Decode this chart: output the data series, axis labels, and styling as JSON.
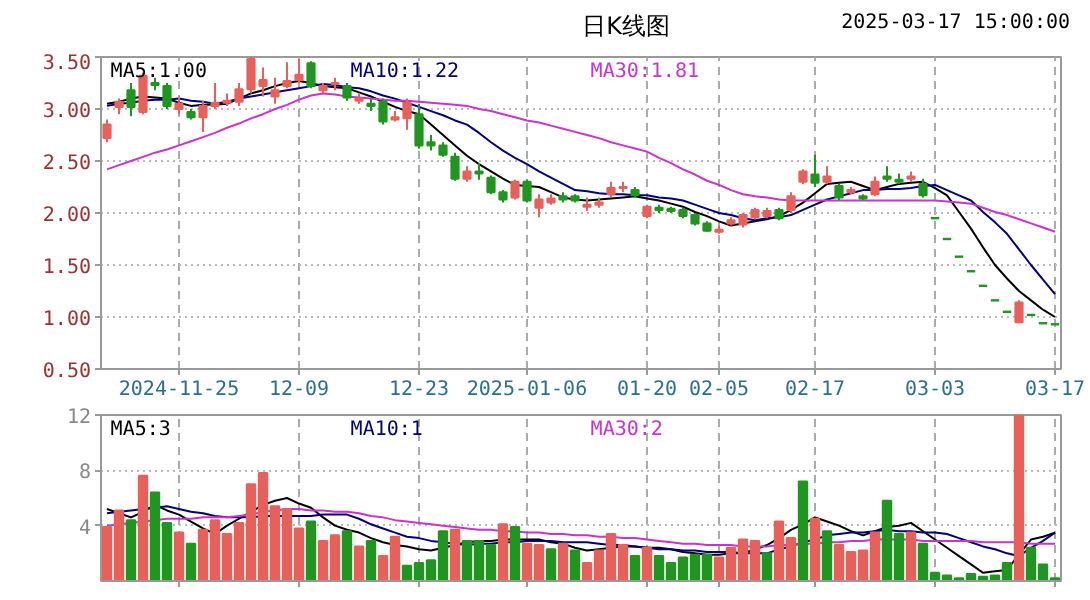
{
  "chart_data": [
    {
      "type": "candlestick",
      "title": "日K线图",
      "annotations": [
        "2025-03-17 15:00:00"
      ],
      "categories": [
        null,
        null,
        null,
        null,
        null,
        null,
        "2024-11-25",
        null,
        null,
        null,
        null,
        null,
        null,
        null,
        null,
        null,
        "12-09",
        null,
        null,
        null,
        null,
        null,
        null,
        null,
        null,
        null,
        "12-23",
        null,
        null,
        null,
        null,
        null,
        null,
        null,
        null,
        "2025-01-06",
        null,
        null,
        null,
        null,
        null,
        null,
        null,
        null,
        null,
        "01-20",
        null,
        null,
        null,
        null,
        null,
        "02-05",
        null,
        null,
        null,
        null,
        null,
        null,
        null,
        "02-17",
        null,
        null,
        null,
        null,
        null,
        null,
        null,
        null,
        null,
        "03-03",
        null,
        null,
        null,
        null,
        null,
        null,
        null,
        null,
        null,
        "03-17"
      ],
      "ohlc": [
        [
          2.72,
          2.9,
          2.68,
          2.85
        ],
        [
          3.02,
          3.1,
          2.95,
          3.07
        ],
        [
          3.18,
          3.25,
          2.93,
          3.02
        ],
        [
          2.97,
          3.35,
          2.95,
          3.32
        ],
        [
          3.25,
          3.3,
          3.18,
          3.23
        ],
        [
          3.22,
          3.25,
          3.0,
          3.03
        ],
        [
          3.0,
          3.12,
          2.95,
          3.05
        ],
        [
          2.97,
          3.0,
          2.9,
          2.92
        ],
        [
          2.92,
          3.08,
          2.78,
          3.03
        ],
        [
          3.03,
          3.25,
          3.0,
          3.06
        ],
        [
          3.06,
          3.15,
          3.03,
          3.08
        ],
        [
          3.07,
          3.25,
          3.03,
          3.19
        ],
        [
          3.19,
          3.5,
          3.15,
          3.48
        ],
        [
          3.22,
          3.4,
          3.12,
          3.28
        ],
        [
          3.12,
          3.3,
          3.05,
          3.18
        ],
        [
          3.22,
          3.45,
          3.2,
          3.27
        ],
        [
          3.28,
          3.48,
          3.25,
          3.33
        ],
        [
          3.44,
          3.46,
          3.2,
          3.22
        ],
        [
          3.18,
          3.25,
          3.15,
          3.22
        ],
        [
          3.24,
          3.3,
          3.18,
          3.25
        ],
        [
          3.22,
          3.25,
          3.08,
          3.11
        ],
        [
          3.08,
          3.15,
          3.05,
          3.1
        ],
        [
          3.05,
          3.1,
          2.98,
          3.03
        ],
        [
          3.07,
          3.1,
          2.85,
          2.88
        ],
        [
          2.9,
          2.98,
          2.88,
          2.92
        ],
        [
          2.91,
          3.1,
          2.8,
          3.06
        ],
        [
          2.95,
          3.05,
          2.62,
          2.65
        ],
        [
          2.68,
          2.75,
          2.6,
          2.65
        ],
        [
          2.65,
          2.68,
          2.54,
          2.56
        ],
        [
          2.54,
          2.58,
          2.31,
          2.33
        ],
        [
          2.33,
          2.45,
          2.3,
          2.4
        ],
        [
          2.4,
          2.48,
          2.32,
          2.38
        ],
        [
          2.34,
          2.36,
          2.18,
          2.2
        ],
        [
          2.2,
          2.22,
          2.1,
          2.13
        ],
        [
          2.15,
          2.32,
          2.13,
          2.3
        ],
        [
          2.3,
          2.32,
          2.1,
          2.12
        ],
        [
          2.05,
          2.18,
          1.96,
          2.13
        ],
        [
          2.1,
          2.18,
          2.08,
          2.14
        ],
        [
          2.16,
          2.2,
          2.1,
          2.13
        ],
        [
          2.16,
          2.18,
          2.1,
          2.12
        ],
        [
          2.06,
          2.15,
          2.02,
          2.08
        ],
        [
          2.08,
          2.15,
          2.05,
          2.1
        ],
        [
          2.18,
          2.3,
          2.15,
          2.24
        ],
        [
          2.24,
          2.3,
          2.2,
          2.25
        ],
        [
          2.22,
          2.25,
          2.15,
          2.17
        ],
        [
          1.97,
          2.08,
          1.95,
          2.06
        ],
        [
          2.05,
          2.08,
          2.0,
          2.03
        ],
        [
          2.04,
          2.06,
          2.0,
          2.02
        ],
        [
          2.03,
          2.05,
          1.95,
          1.97
        ],
        [
          1.98,
          2.0,
          1.88,
          1.9
        ],
        [
          1.9,
          1.92,
          1.82,
          1.83
        ],
        [
          1.82,
          1.88,
          1.8,
          1.84
        ],
        [
          1.9,
          1.96,
          1.88,
          1.93
        ],
        [
          1.89,
          2.0,
          1.86,
          1.98
        ],
        [
          1.96,
          2.05,
          1.94,
          2.03
        ],
        [
          1.97,
          2.05,
          1.95,
          2.02
        ],
        [
          2.03,
          2.05,
          1.93,
          1.95
        ],
        [
          2.03,
          2.2,
          2.0,
          2.16
        ],
        [
          2.3,
          2.42,
          2.28,
          2.4
        ],
        [
          2.37,
          2.56,
          2.25,
          2.29
        ],
        [
          2.3,
          2.45,
          2.28,
          2.35
        ],
        [
          2.26,
          2.28,
          2.12,
          2.15
        ],
        [
          2.2,
          2.25,
          2.18,
          2.22
        ],
        [
          2.16,
          2.18,
          2.12,
          2.14
        ],
        [
          2.18,
          2.35,
          2.16,
          2.3
        ],
        [
          2.35,
          2.45,
          2.3,
          2.33
        ],
        [
          2.32,
          2.38,
          2.28,
          2.3
        ],
        [
          2.33,
          2.4,
          2.3,
          2.35
        ],
        [
          2.28,
          2.33,
          2.15,
          2.17
        ],
        [
          1.95,
          1.95,
          1.95,
          1.95
        ],
        [
          1.75,
          1.75,
          1.75,
          1.75
        ],
        [
          1.58,
          1.58,
          1.58,
          1.58
        ],
        [
          1.44,
          1.44,
          1.44,
          1.44
        ],
        [
          1.3,
          1.3,
          1.3,
          1.3
        ],
        [
          1.16,
          1.16,
          1.16,
          1.16
        ],
        [
          1.05,
          1.05,
          1.05,
          1.05
        ],
        [
          0.95,
          1.16,
          0.94,
          1.14
        ],
        [
          1.02,
          1.02,
          1.02,
          1.02
        ],
        [
          0.94,
          0.94,
          0.94,
          0.94
        ],
        [
          0.93,
          0.93,
          0.93,
          0.93
        ]
      ],
      "series": [
        {
          "type": "line",
          "name": "MA5:1.00",
          "color": "#000000",
          "values": [
            3.05,
            3.07,
            3.1,
            3.12,
            3.11,
            3.1,
            3.06,
            3.03,
            3.04,
            3.04,
            3.05,
            3.1,
            3.15,
            3.18,
            3.22,
            3.25,
            3.27,
            3.25,
            3.22,
            3.21,
            3.2,
            3.16,
            3.12,
            3.07,
            3.02,
            2.98,
            2.95,
            2.85,
            2.75,
            2.65,
            2.55,
            2.47,
            2.4,
            2.33,
            2.27,
            2.26,
            2.25,
            2.2,
            2.15,
            2.13,
            2.12,
            2.13,
            2.14,
            2.15,
            2.16,
            2.14,
            2.12,
            2.09,
            2.06,
            2.01,
            1.97,
            1.92,
            1.88,
            1.9,
            1.92,
            1.94,
            1.97,
            2.03,
            2.1,
            2.19,
            2.28,
            2.29,
            2.3,
            2.26,
            2.22,
            2.25,
            2.28,
            2.29,
            2.3,
            2.24,
            2.17,
            2.01,
            1.85,
            1.67,
            1.5,
            1.37,
            1.25,
            1.16,
            1.07,
            1.0
          ]
        },
        {
          "type": "line",
          "name": "MA10:1.22",
          "color": "#000080",
          "values": [
            3.03,
            3.05,
            3.06,
            3.08,
            3.09,
            3.09,
            3.1,
            3.08,
            3.07,
            3.05,
            3.07,
            3.1,
            3.12,
            3.14,
            3.16,
            3.18,
            3.2,
            3.22,
            3.24,
            3.23,
            3.21,
            3.2,
            3.17,
            3.13,
            3.1,
            3.06,
            3.02,
            2.98,
            2.94,
            2.89,
            2.85,
            2.77,
            2.68,
            2.6,
            2.53,
            2.47,
            2.4,
            2.34,
            2.28,
            2.22,
            2.21,
            2.19,
            2.18,
            2.18,
            2.17,
            2.17,
            2.15,
            2.14,
            2.12,
            2.08,
            2.04,
            2.0,
            1.98,
            1.95,
            1.93,
            1.95,
            1.96,
            1.98,
            2.03,
            2.08,
            2.13,
            2.16,
            2.19,
            2.22,
            2.22,
            2.23,
            2.23,
            2.24,
            2.26,
            2.27,
            2.22,
            2.17,
            2.12,
            2.01,
            1.91,
            1.8,
            1.65,
            1.5,
            1.36,
            1.22
          ]
        },
        {
          "type": "line",
          "name": "MA30:1.81",
          "color": "#cc33cc",
          "values": [
            2.42,
            2.46,
            2.5,
            2.54,
            2.58,
            2.61,
            2.65,
            2.69,
            2.73,
            2.77,
            2.82,
            2.86,
            2.91,
            2.95,
            3.0,
            3.04,
            3.09,
            3.13,
            3.15,
            3.14,
            3.12,
            3.11,
            3.1,
            3.09,
            3.08,
            3.08,
            3.07,
            3.06,
            3.05,
            3.04,
            3.03,
            3.0,
            2.98,
            2.95,
            2.92,
            2.89,
            2.87,
            2.84,
            2.81,
            2.78,
            2.75,
            2.72,
            2.68,
            2.65,
            2.62,
            2.59,
            2.53,
            2.48,
            2.42,
            2.37,
            2.31,
            2.27,
            2.22,
            2.18,
            2.16,
            2.15,
            2.13,
            2.12,
            2.12,
            2.12,
            2.12,
            2.12,
            2.12,
            2.12,
            2.12,
            2.12,
            2.12,
            2.12,
            2.12,
            2.12,
            2.11,
            2.1,
            2.09,
            2.05,
            2.01,
            1.98,
            1.94,
            1.9,
            1.86,
            1.82
          ]
        }
      ],
      "ylim": [
        0.5,
        3.5
      ],
      "yticks": [
        {
          "value": 0.5,
          "label": "0.50"
        },
        {
          "value": 1.0,
          "label": "1.00"
        },
        {
          "value": 1.5,
          "label": "1.50"
        },
        {
          "value": 2.0,
          "label": "2.00"
        },
        {
          "value": 2.5,
          "label": "2.50"
        },
        {
          "value": 3.0,
          "label": "3.00"
        },
        {
          "value": 3.5,
          "label": "3.50"
        }
      ],
      "grid": true,
      "legend": "top"
    },
    {
      "type": "bar",
      "categories": [
        null,
        null,
        null,
        null,
        null,
        null,
        null,
        null,
        null,
        null,
        null,
        null,
        null,
        null,
        null,
        null,
        null,
        null,
        null,
        null,
        null,
        null,
        null,
        null,
        null,
        null,
        null,
        null,
        null,
        null,
        null,
        null,
        null,
        null,
        null,
        null,
        null,
        null,
        null,
        null,
        null,
        null,
        null,
        null,
        null,
        null,
        null,
        null,
        null,
        null,
        null,
        null,
        null,
        null,
        null,
        null,
        null,
        null,
        null,
        null,
        null,
        null,
        null,
        null,
        null,
        null,
        null,
        null,
        null,
        null,
        null,
        null,
        null,
        null,
        null,
        null,
        null,
        null,
        null,
        null
      ],
      "values": [
        3.9,
        5.1,
        4.4,
        7.6,
        6.4,
        4.2,
        3.5,
        2.7,
        3.7,
        4.4,
        3.4,
        4.2,
        7.0,
        7.8,
        5.4,
        5.2,
        3.8,
        4.3,
        2.9,
        3.3,
        3.6,
        2.5,
        2.9,
        1.8,
        3.2,
        1.1,
        1.3,
        1.5,
        3.6,
        3.7,
        2.9,
        2.9,
        2.6,
        4.1,
        3.9,
        2.7,
        2.6,
        2.3,
        2.7,
        2.2,
        1.3,
        2.2,
        3.4,
        2.6,
        1.8,
        2.4,
        1.8,
        1.3,
        1.7,
        1.9,
        1.9,
        1.7,
        2.4,
        3.0,
        2.9,
        2.0,
        4.3,
        3.1,
        7.2,
        4.5,
        3.6,
        2.6,
        2.1,
        2.2,
        3.5,
        5.8,
        3.4,
        3.5,
        2.7,
        0.6,
        0.4,
        0.2,
        0.5,
        0.3,
        0.4,
        1.3,
        12,
        2.4,
        1.2,
        0.2
      ],
      "colors": [
        "#e8605a",
        "#e8605a",
        "#1f961f",
        "#e8605a",
        "#1f961f",
        "#1f961f",
        "#e8605a",
        "#1f961f",
        "#e8605a",
        "#e8605a",
        "#e8605a",
        "#e8605a",
        "#e8605a",
        "#e8605a",
        "#e8605a",
        "#e8605a",
        "#e8605a",
        "#1f961f",
        "#e8605a",
        "#e8605a",
        "#1f961f",
        "#e8605a",
        "#1f961f",
        "#e8605a",
        "#e8605a",
        "#1f961f",
        "#1f961f",
        "#1f961f",
        "#1f961f",
        "#e8605a",
        "#1f961f",
        "#1f961f",
        "#1f961f",
        "#e8605a",
        "#1f961f",
        "#e8605a",
        "#e8605a",
        "#1f961f",
        "#e8605a",
        "#1f961f",
        "#e8605a",
        "#e8605a",
        "#e8605a",
        "#e8605a",
        "#1f961f",
        "#e8605a",
        "#1f961f",
        "#1f961f",
        "#1f961f",
        "#1f961f",
        "#1f961f",
        "#e8605a",
        "#e8605a",
        "#e8605a",
        "#e8605a",
        "#1f961f",
        "#e8605a",
        "#e8605a",
        "#1f961f",
        "#e8605a",
        "#1f961f",
        "#e8605a",
        "#e8605a",
        "#e8605a",
        "#e8605a",
        "#1f961f",
        "#1f961f",
        "#e8605a",
        "#1f961f",
        "#1f961f",
        "#1f961f",
        "#1f961f",
        "#1f961f",
        "#1f961f",
        "#1f961f",
        "#1f961f",
        "#e8605a",
        "#1f961f",
        "#1f961f",
        "#1f961f"
      ],
      "series": [
        {
          "type": "line",
          "name": "MA5:3",
          "color": "#000000",
          "values": [
            5.2,
            4.9,
            4.6,
            5.0,
            5.5,
            5.1,
            4.8,
            4.3,
            3.8,
            3.4,
            4.0,
            4.5,
            5.0,
            5.5,
            5.8,
            6.0,
            5.6,
            5.3,
            4.6,
            4.0,
            3.7,
            3.5,
            3.1,
            2.8,
            2.6,
            2.5,
            2.3,
            2.2,
            2.4,
            2.6,
            2.8,
            2.9,
            2.9,
            3.0,
            3.0,
            3.0,
            3.0,
            2.8,
            2.7,
            2.4,
            2.2,
            2.3,
            2.4,
            2.5,
            2.5,
            2.4,
            2.4,
            2.3,
            2.1,
            2.0,
            1.9,
            1.9,
            2.0,
            2.0,
            2.3,
            2.6,
            3.1,
            3.7,
            4.1,
            4.6,
            4.3,
            4.0,
            3.6,
            3.3,
            3.6,
            3.9,
            4.0,
            4.2,
            3.6,
            3.0,
            2.4,
            1.8,
            1.2,
            0.6,
            0.7,
            0.8,
            1.9,
            3.0,
            3.2,
            3.5
          ]
        },
        {
          "type": "line",
          "name": "MA10:1",
          "color": "#000080",
          "values": [
            4.9,
            5.0,
            5.1,
            5.2,
            5.3,
            5.4,
            5.2,
            5.0,
            4.9,
            4.7,
            4.6,
            4.6,
            4.6,
            4.7,
            4.7,
            4.7,
            4.7,
            4.7,
            4.8,
            4.8,
            4.8,
            4.5,
            4.1,
            3.8,
            3.5,
            3.2,
            3.1,
            2.9,
            2.8,
            2.7,
            2.6,
            2.7,
            2.7,
            2.8,
            2.8,
            2.9,
            2.9,
            2.9,
            2.8,
            2.8,
            2.8,
            2.7,
            2.6,
            2.6,
            2.5,
            2.4,
            2.3,
            2.3,
            2.2,
            2.2,
            2.1,
            2.1,
            2.1,
            2.0,
            2.0,
            2.0,
            2.3,
            2.5,
            2.8,
            3.0,
            3.3,
            3.4,
            3.5,
            3.5,
            3.6,
            3.7,
            3.6,
            3.6,
            3.5,
            3.5,
            3.4,
            3.1,
            2.8,
            2.5,
            2.3,
            2.0,
            1.8,
            2.4,
            2.9,
            3.5
          ]
        },
        {
          "type": "line",
          "name": "MA30:2",
          "color": "#cc33cc",
          "values": [
            4.0,
            4.1,
            4.2,
            4.3,
            4.4,
            4.5,
            4.5,
            4.5,
            4.6,
            4.6,
            4.6,
            4.7,
            4.8,
            5.0,
            5.1,
            5.2,
            5.2,
            5.1,
            5.1,
            5.0,
            5.0,
            4.9,
            4.7,
            4.6,
            4.4,
            4.3,
            4.2,
            4.1,
            4.0,
            3.9,
            3.8,
            3.7,
            3.7,
            3.6,
            3.6,
            3.5,
            3.5,
            3.4,
            3.4,
            3.3,
            3.3,
            3.2,
            3.2,
            3.1,
            3.1,
            3.0,
            2.9,
            2.8,
            2.7,
            2.7,
            2.6,
            2.6,
            2.6,
            2.5,
            2.5,
            2.5,
            2.6,
            2.6,
            2.7,
            2.7,
            2.8,
            2.8,
            2.9,
            2.9,
            3.0,
            3.0,
            3.0,
            3.0,
            2.9,
            2.9,
            2.9,
            2.9,
            2.9,
            2.8,
            2.8,
            2.8,
            2.8,
            2.7,
            2.7,
            2.7
          ]
        }
      ],
      "ylim": [
        0,
        12
      ],
      "yticks": [
        4,
        8,
        12
      ],
      "tick_labels": "y",
      "grid": true,
      "legend": "top"
    }
  ]
}
